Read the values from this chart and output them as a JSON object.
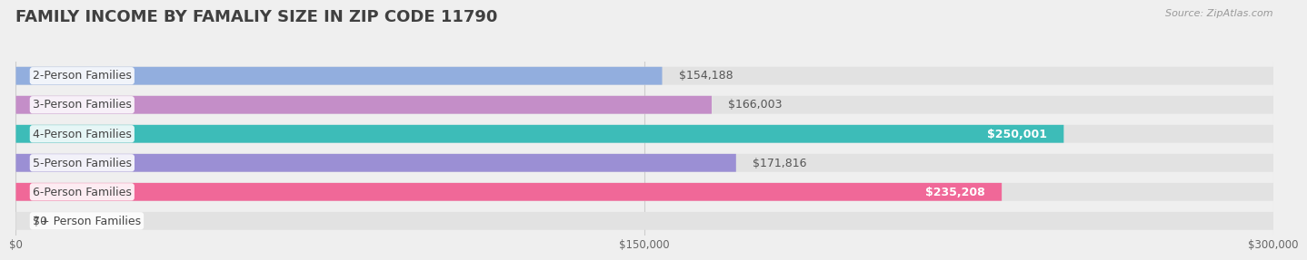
{
  "title": "FAMILY INCOME BY FAMALIY SIZE IN ZIP CODE 11790",
  "source": "Source: ZipAtlas.com",
  "categories": [
    "2-Person Families",
    "3-Person Families",
    "4-Person Families",
    "5-Person Families",
    "6-Person Families",
    "7+ Person Families"
  ],
  "values": [
    154188,
    166003,
    250001,
    171816,
    235208,
    0
  ],
  "bar_colors": [
    "#92aede",
    "#c48ec8",
    "#3dbcb8",
    "#9b8fd4",
    "#f06898",
    "#f8d8b0"
  ],
  "label_colors": [
    "#555555",
    "#555555",
    "#ffffff",
    "#555555",
    "#ffffff",
    "#555555"
  ],
  "value_labels": [
    "$154,188",
    "$166,003",
    "$250,001",
    "$171,816",
    "$235,208",
    "$0"
  ],
  "xlim": [
    0,
    300000
  ],
  "xticks": [
    0,
    150000,
    300000
  ],
  "xtick_labels": [
    "$0",
    "$150,000",
    "$300,000"
  ],
  "background_color": "#efefef",
  "bar_bg_color": "#e2e2e2",
  "title_color": "#404040",
  "title_fontsize": 13,
  "source_color": "#999999",
  "label_fontsize": 9,
  "value_fontsize": 9,
  "bar_height": 0.62
}
